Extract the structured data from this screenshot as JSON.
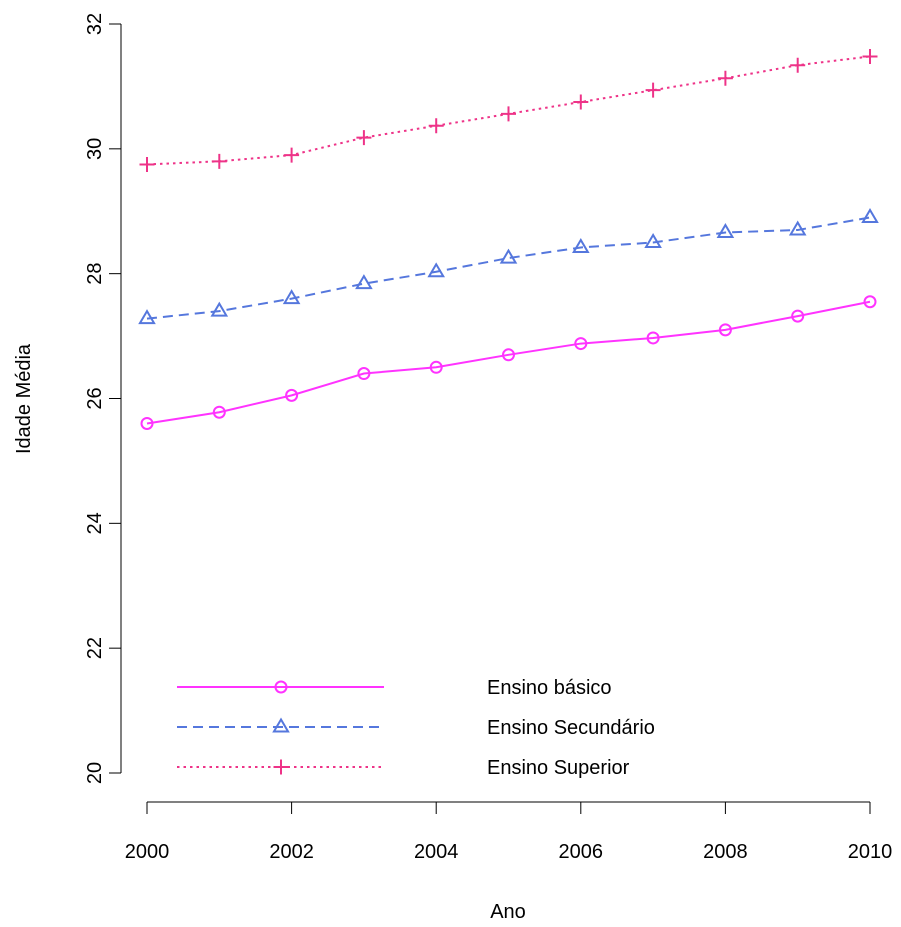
{
  "chart_data": {
    "type": "line",
    "title": "",
    "xlabel": "Ano",
    "ylabel": "Idade Média",
    "x": [
      2000,
      2001,
      2002,
      2003,
      2004,
      2005,
      2006,
      2007,
      2008,
      2009,
      2010
    ],
    "xlim": [
      2000,
      2010
    ],
    "ylim": [
      20,
      32
    ],
    "x_ticks": [
      2000,
      2002,
      2004,
      2006,
      2008,
      2010
    ],
    "y_ticks": [
      20,
      22,
      24,
      26,
      28,
      30,
      32
    ],
    "grid": false,
    "legend_position": "bottom-left",
    "series": [
      {
        "name": "Ensino básico",
        "values": [
          25.6,
          25.78,
          26.05,
          26.4,
          26.5,
          26.7,
          26.88,
          26.97,
          27.1,
          27.32,
          27.55
        ],
        "color": "#ff33ff",
        "line_style": "solid",
        "marker": "circle"
      },
      {
        "name": "Ensino Secundário",
        "values": [
          27.28,
          27.4,
          27.6,
          27.84,
          28.03,
          28.25,
          28.42,
          28.5,
          28.66,
          28.7,
          28.9
        ],
        "color": "#5577dd",
        "line_style": "dashed",
        "marker": "triangle"
      },
      {
        "name": "Ensino Superior",
        "values": [
          29.75,
          29.8,
          29.9,
          30.18,
          30.37,
          30.56,
          30.75,
          30.94,
          31.13,
          31.34,
          31.48
        ],
        "color": "#ee3388",
        "line_style": "dotted",
        "marker": "plus"
      }
    ]
  }
}
